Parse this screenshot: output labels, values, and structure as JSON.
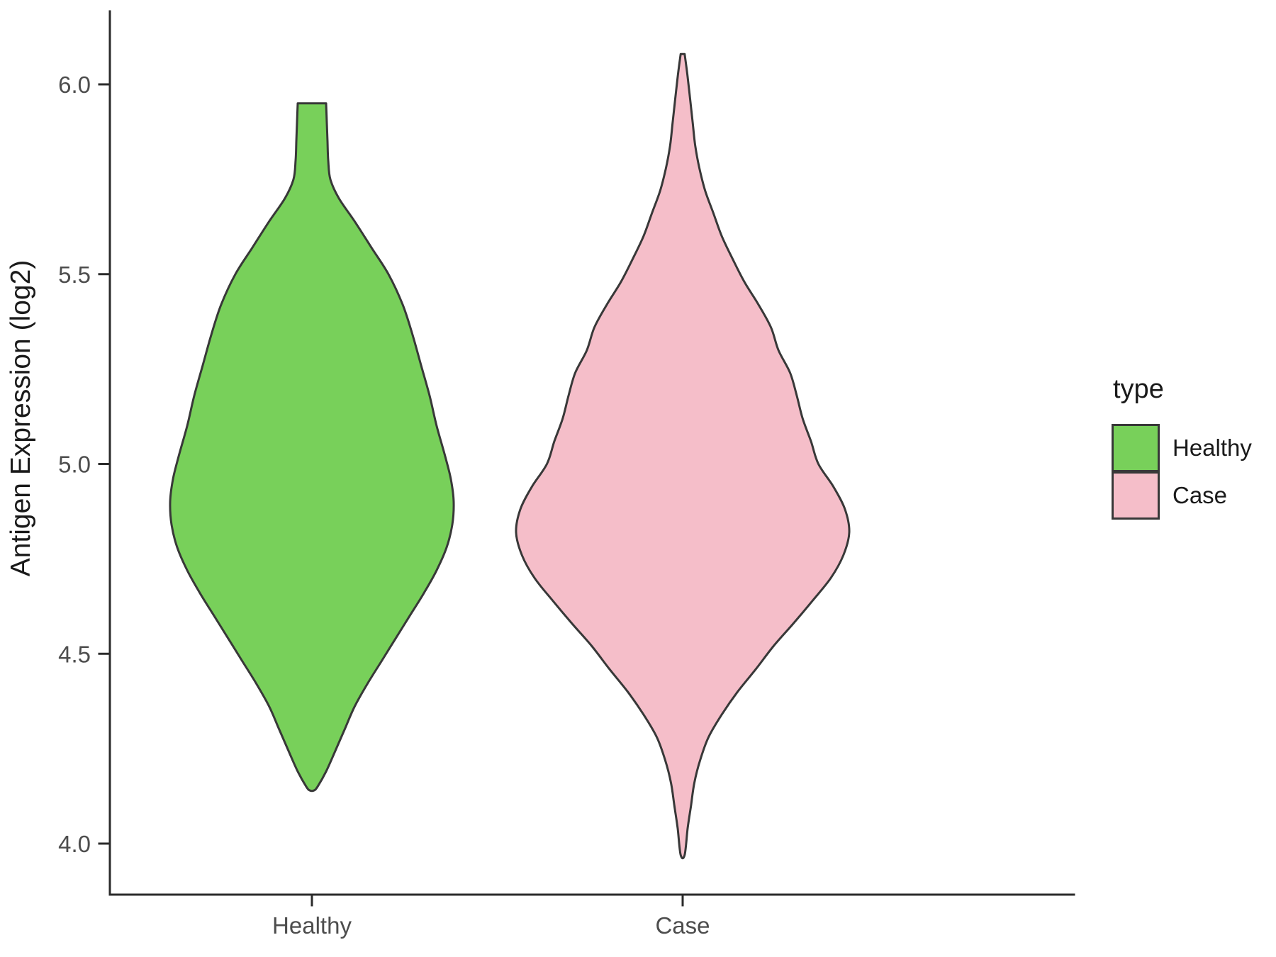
{
  "chart_data": {
    "type": "violin",
    "title": "",
    "xlabel": "",
    "ylabel": "Antigen Expression (log2)",
    "categories": [
      "Healthy",
      "Case"
    ],
    "y_ticks": [
      4.0,
      4.5,
      5.0,
      5.5,
      6.0
    ],
    "y_tick_labels": [
      "4.0",
      "4.5",
      "5.0",
      "5.5",
      "6.0"
    ],
    "ylim": [
      3.85,
      6.2
    ],
    "grid": false,
    "legend": {
      "title": "type",
      "position": "right",
      "entries": [
        "Healthy",
        "Case"
      ]
    },
    "series": [
      {
        "name": "Healthy",
        "fill": "#78D05A",
        "outline": "#383838",
        "range": [
          4.14,
          5.95
        ],
        "peak_value": 4.9,
        "trimmed_top": true,
        "profile": [
          [
            5.95,
            0.1
          ],
          [
            5.9,
            0.105
          ],
          [
            5.85,
            0.11
          ],
          [
            5.8,
            0.115
          ],
          [
            5.75,
            0.13
          ],
          [
            5.7,
            0.19
          ],
          [
            5.64,
            0.3
          ],
          [
            5.57,
            0.42
          ],
          [
            5.5,
            0.54
          ],
          [
            5.42,
            0.64
          ],
          [
            5.34,
            0.71
          ],
          [
            5.26,
            0.77
          ],
          [
            5.18,
            0.83
          ],
          [
            5.1,
            0.88
          ],
          [
            5.02,
            0.94
          ],
          [
            4.96,
            0.98
          ],
          [
            4.9,
            1.0
          ],
          [
            4.84,
            0.99
          ],
          [
            4.78,
            0.95
          ],
          [
            4.72,
            0.88
          ],
          [
            4.66,
            0.79
          ],
          [
            4.6,
            0.69
          ],
          [
            4.54,
            0.59
          ],
          [
            4.48,
            0.49
          ],
          [
            4.42,
            0.39
          ],
          [
            4.36,
            0.3
          ],
          [
            4.3,
            0.23
          ],
          [
            4.24,
            0.16
          ],
          [
            4.19,
            0.1
          ],
          [
            4.15,
            0.04
          ],
          [
            4.14,
            0.015
          ]
        ]
      },
      {
        "name": "Case",
        "fill": "#F5BEC9",
        "outline": "#383838",
        "range": [
          3.97,
          6.08
        ],
        "peak_value": 4.82,
        "trimmed_top": false,
        "profile": [
          [
            6.08,
            0.012
          ],
          [
            6.02,
            0.03
          ],
          [
            5.96,
            0.045
          ],
          [
            5.9,
            0.06
          ],
          [
            5.84,
            0.075
          ],
          [
            5.78,
            0.1
          ],
          [
            5.72,
            0.135
          ],
          [
            5.66,
            0.185
          ],
          [
            5.6,
            0.235
          ],
          [
            5.54,
            0.3
          ],
          [
            5.48,
            0.37
          ],
          [
            5.42,
            0.455
          ],
          [
            5.36,
            0.53
          ],
          [
            5.3,
            0.575
          ],
          [
            5.24,
            0.645
          ],
          [
            5.18,
            0.685
          ],
          [
            5.12,
            0.72
          ],
          [
            5.06,
            0.77
          ],
          [
            5.0,
            0.815
          ],
          [
            4.94,
            0.905
          ],
          [
            4.88,
            0.975
          ],
          [
            4.82,
            1.0
          ],
          [
            4.76,
            0.965
          ],
          [
            4.7,
            0.89
          ],
          [
            4.64,
            0.78
          ],
          [
            4.58,
            0.665
          ],
          [
            4.52,
            0.545
          ],
          [
            4.46,
            0.44
          ],
          [
            4.4,
            0.33
          ],
          [
            4.34,
            0.235
          ],
          [
            4.28,
            0.155
          ],
          [
            4.22,
            0.105
          ],
          [
            4.16,
            0.07
          ],
          [
            4.1,
            0.05
          ],
          [
            4.04,
            0.03
          ],
          [
            3.97,
            0.012
          ]
        ]
      }
    ]
  },
  "colors": {
    "background": "#ffffff",
    "axis_line": "#2b2b2b",
    "tick_label": "#4D4D4D",
    "axis_title": "#1a1a1a"
  }
}
